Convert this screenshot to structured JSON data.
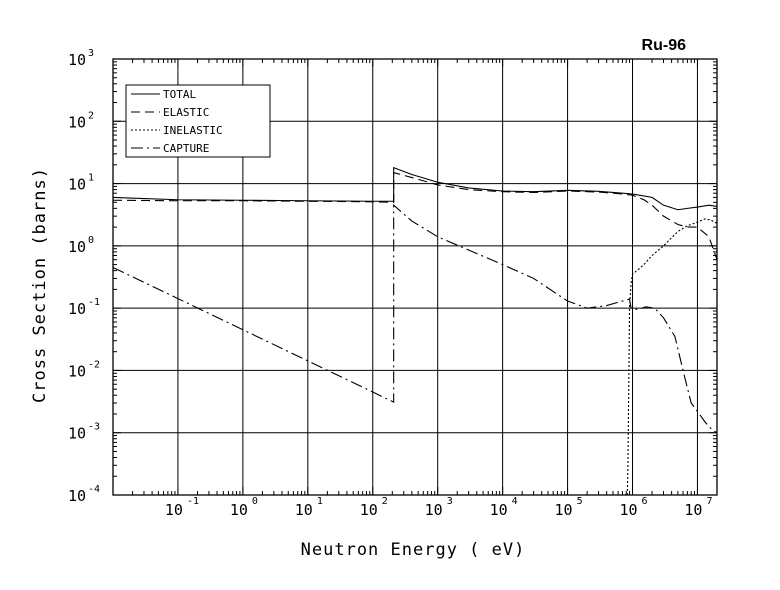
{
  "chart_data": {
    "type": "line",
    "title": "Ru-96",
    "xlabel": "Neutron Energy ( eV)",
    "ylabel": "Cross Section (barns)",
    "xscale": "log",
    "yscale": "log",
    "xlim": [
      0.01,
      20000000
    ],
    "ylim": [
      0.0001,
      1000
    ],
    "grid": true,
    "legend_position": "top-left",
    "x_ticks": [
      {
        "base": "10",
        "exp": "-1",
        "value": 0.1
      },
      {
        "base": "10",
        "exp": "0",
        "value": 1
      },
      {
        "base": "10",
        "exp": "1",
        "value": 10
      },
      {
        "base": "10",
        "exp": "2",
        "value": 100
      },
      {
        "base": "10",
        "exp": "3",
        "value": 1000
      },
      {
        "base": "10",
        "exp": "4",
        "value": 10000
      },
      {
        "base": "10",
        "exp": "5",
        "value": 100000
      },
      {
        "base": "10",
        "exp": "6",
        "value": 1000000
      },
      {
        "base": "10",
        "exp": "7",
        "value": 10000000
      }
    ],
    "y_ticks": [
      {
        "base": "10",
        "exp": "-4",
        "value": 0.0001
      },
      {
        "base": "10",
        "exp": "-3",
        "value": 0.001
      },
      {
        "base": "10",
        "exp": "-2",
        "value": 0.01
      },
      {
        "base": "10",
        "exp": "-1",
        "value": 0.1
      },
      {
        "base": "10",
        "exp": "0",
        "value": 1
      },
      {
        "base": "10",
        "exp": "1",
        "value": 10
      },
      {
        "base": "10",
        "exp": "2",
        "value": 100
      },
      {
        "base": "10",
        "exp": "3",
        "value": 1000
      }
    ],
    "series": [
      {
        "name": "TOTAL",
        "dash": "solid",
        "points": [
          [
            0.01,
            6.0
          ],
          [
            0.1,
            5.5
          ],
          [
            1,
            5.4
          ],
          [
            10,
            5.3
          ],
          [
            100,
            5.2
          ],
          [
            210,
            5.2
          ],
          [
            210,
            18
          ],
          [
            400,
            14
          ],
          [
            1000,
            10.5
          ],
          [
            3000,
            8.5
          ],
          [
            10000,
            7.6
          ],
          [
            30000,
            7.4
          ],
          [
            100000,
            7.8
          ],
          [
            300000,
            7.5
          ],
          [
            700000,
            7.0
          ],
          [
            1000000,
            6.8
          ],
          [
            2000000,
            6.0
          ],
          [
            3000000,
            4.5
          ],
          [
            5000000,
            3.8
          ],
          [
            7000000,
            4.0
          ],
          [
            10000000,
            4.2
          ],
          [
            15000000,
            4.5
          ],
          [
            20000000,
            4.3
          ]
        ]
      },
      {
        "name": "ELASTIC",
        "dash": "longdash",
        "points": [
          [
            0.01,
            5.4
          ],
          [
            0.1,
            5.3
          ],
          [
            1,
            5.3
          ],
          [
            10,
            5.2
          ],
          [
            100,
            5.1
          ],
          [
            210,
            5.0
          ],
          [
            210,
            15
          ],
          [
            400,
            12.5
          ],
          [
            1000,
            9.5
          ],
          [
            3000,
            8.0
          ],
          [
            10000,
            7.4
          ],
          [
            30000,
            7.2
          ],
          [
            100000,
            7.6
          ],
          [
            300000,
            7.3
          ],
          [
            700000,
            6.8
          ],
          [
            1000000,
            6.5
          ],
          [
            1500000,
            5.5
          ],
          [
            2000000,
            4.5
          ],
          [
            3000000,
            3.0
          ],
          [
            5000000,
            2.2
          ],
          [
            7000000,
            2.0
          ],
          [
            10000000,
            2.0
          ],
          [
            15000000,
            1.4
          ],
          [
            20000000,
            0.6
          ]
        ]
      },
      {
        "name": "INELASTIC",
        "dash": "dotted",
        "points": [
          [
            832000,
            0.0001
          ],
          [
            850000,
            0.0003
          ],
          [
            870000,
            0.003
          ],
          [
            900000,
            0.1
          ],
          [
            950000,
            0.25
          ],
          [
            1000000,
            0.35
          ],
          [
            1500000,
            0.5
          ],
          [
            2000000,
            0.7
          ],
          [
            3000000,
            1.0
          ],
          [
            5000000,
            1.7
          ],
          [
            7000000,
            2.1
          ],
          [
            10000000,
            2.4
          ],
          [
            13000000,
            2.7
          ],
          [
            16000000,
            2.6
          ],
          [
            20000000,
            2.3
          ]
        ]
      },
      {
        "name": "CAPTURE",
        "dash": "dashdot",
        "points": [
          [
            0.01,
            0.45
          ],
          [
            100,
            0.0045
          ],
          [
            210,
            0.0031
          ],
          [
            210,
            4.5
          ],
          [
            400,
            2.5
          ],
          [
            1000,
            1.4
          ],
          [
            10000,
            0.5
          ],
          [
            30000,
            0.3
          ],
          [
            100000,
            0.13
          ],
          [
            200000,
            0.1
          ],
          [
            400000,
            0.11
          ],
          [
            700000,
            0.13
          ],
          [
            900000,
            0.14
          ],
          [
            950000,
            0.1
          ],
          [
            1200000,
            0.095
          ],
          [
            1600000,
            0.105
          ],
          [
            2200000,
            0.1
          ],
          [
            3000000,
            0.07
          ],
          [
            4500000,
            0.035
          ],
          [
            6000000,
            0.01
          ],
          [
            8000000,
            0.003
          ],
          [
            10000000,
            0.0022
          ],
          [
            13000000,
            0.0015
          ],
          [
            17000000,
            0.0011
          ],
          [
            20000000,
            0.001
          ]
        ]
      }
    ]
  }
}
